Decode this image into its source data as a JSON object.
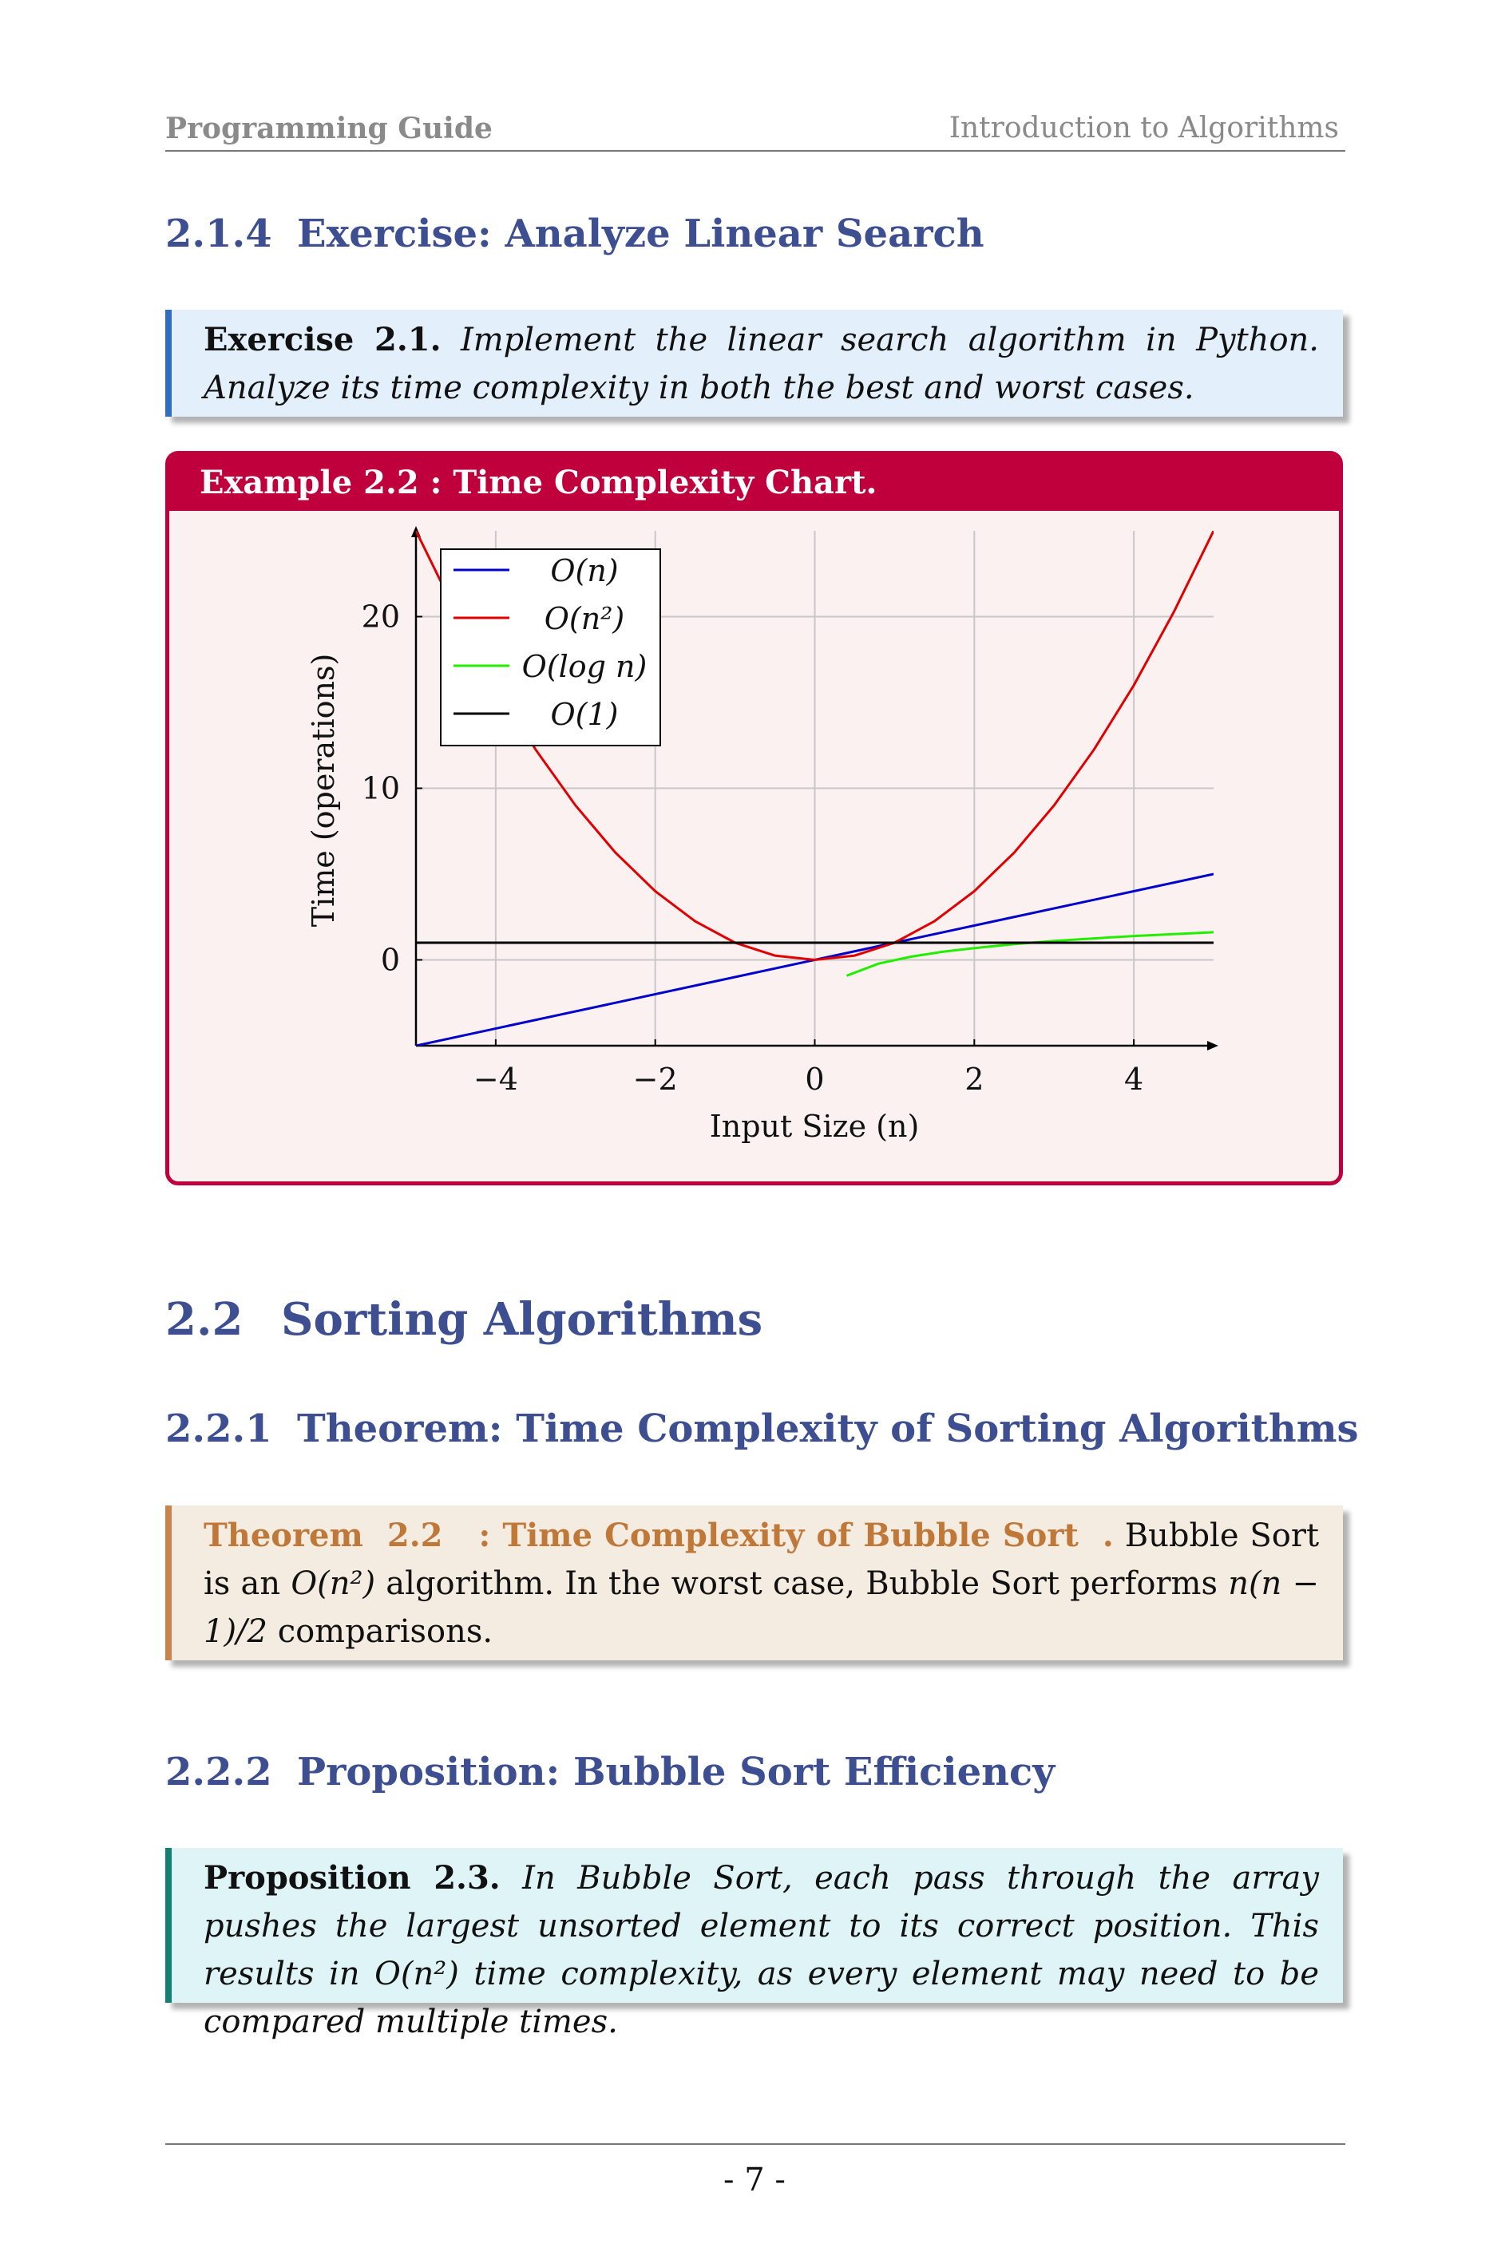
{
  "header": {
    "left": "Programming Guide",
    "right": "Introduction to Algorithms"
  },
  "sec_214": {
    "num": "2.1.4",
    "title": "Exercise: Analyze Linear Search"
  },
  "exercise": {
    "lead": "Exercise 2.1.",
    "text": "Implement the linear search algorithm in Python. Analyze its time complexity in both the best and worst cases."
  },
  "example": {
    "title": "Example 2.2   : Time Complexity Chart."
  },
  "chart_data": {
    "type": "line",
    "xlabel": "Input Size (n)",
    "ylabel": "Time (operations)",
    "xlim": [
      -5,
      5
    ],
    "ylim": [
      -5,
      25
    ],
    "x_ticks": [
      "−4",
      "−2",
      "0",
      "2",
      "4"
    ],
    "y_ticks": [
      "0",
      "10",
      "20"
    ],
    "grid": true,
    "legend_position": "top-left",
    "series": [
      {
        "name": "O(n)",
        "color": "#0000cc",
        "x": [
          -5,
          5
        ],
        "y": [
          -5,
          5
        ]
      },
      {
        "name": "O(n²)",
        "color": "#e00000",
        "x": [
          -5,
          -4.5,
          -4,
          -3.5,
          -3,
          -2.5,
          -2,
          -1.5,
          -1,
          -0.5,
          0,
          0.5,
          1,
          1.5,
          2,
          2.5,
          3,
          3.5,
          4,
          4.5,
          5
        ],
        "y": [
          25,
          20.25,
          16,
          12.25,
          9,
          6.25,
          4,
          2.25,
          1,
          0.25,
          0,
          0.25,
          1,
          2.25,
          4,
          6.25,
          9,
          12.25,
          16,
          20.25,
          25
        ]
      },
      {
        "name": "O(log n)",
        "color": "#22ee00",
        "x": [
          0.4,
          0.8,
          1.2,
          1.6,
          2,
          2.5,
          3,
          3.5,
          4,
          4.5,
          5
        ],
        "y": [
          -0.92,
          -0.22,
          0.18,
          0.47,
          0.69,
          0.92,
          1.1,
          1.25,
          1.39,
          1.5,
          1.61
        ]
      },
      {
        "name": "O(1)",
        "color": "#000000",
        "x": [
          -5,
          5
        ],
        "y": [
          1,
          1
        ]
      }
    ]
  },
  "sec_22": {
    "num": "2.2",
    "title": "Sorting Algorithms"
  },
  "sec_221": {
    "num": "2.2.1",
    "title": "Theorem: Time Complexity of Sorting Algorithms"
  },
  "theorem": {
    "lead": "Theorem  2.2   : Time Complexity of Bubble Sort  .",
    "t1": "Bubble Sort is an ",
    "math1": "O(n²)",
    "t2": " algorithm. In the worst case, Bubble Sort performs ",
    "math2": "n(n − 1)/2",
    "t3": " comparisons."
  },
  "sec_222": {
    "num": "2.2.2",
    "title": "Proposition: Bubble Sort Efficiency"
  },
  "proposition": {
    "lead": "Proposition 2.3.",
    "t1": "In Bubble Sort, each pass through the array pushes the largest unsorted element to its correct position. This results in ",
    "math1": "O(n²)",
    "t2": " time complexity, as every element may need to be compared multiple times."
  },
  "footer": {
    "page": "- 7 -"
  }
}
